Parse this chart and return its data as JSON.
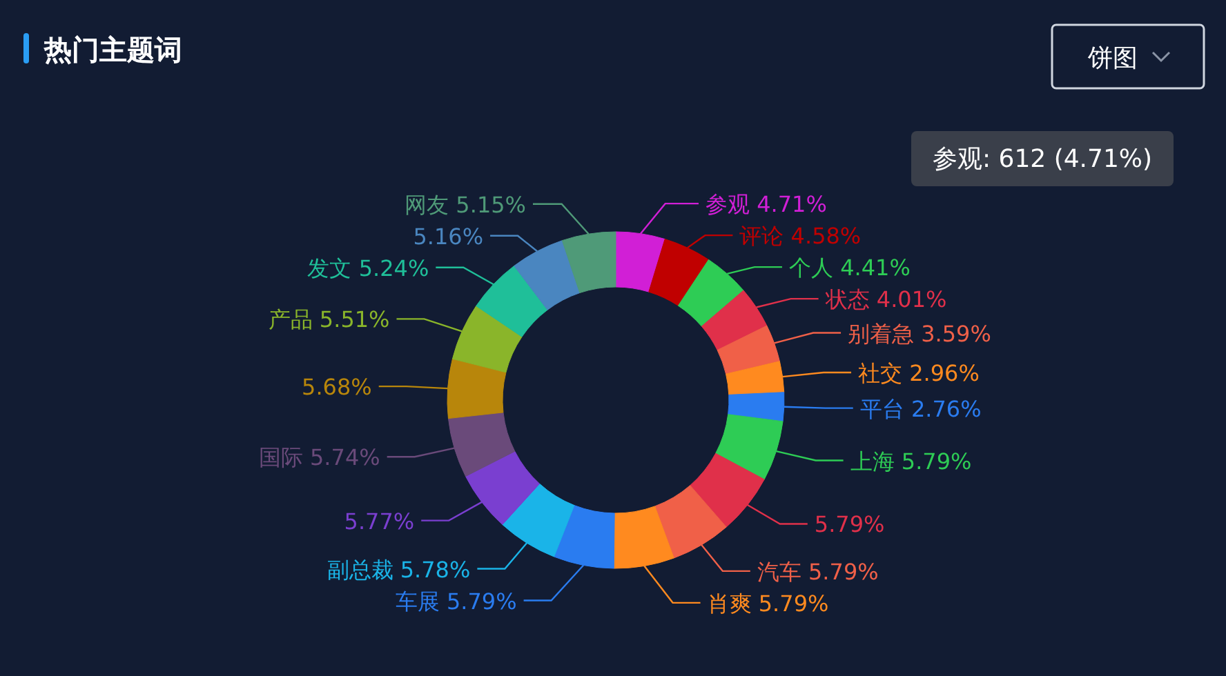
{
  "chart_data": {
    "type": "donut",
    "title": "热门主题词",
    "categories": [
      "参观",
      "评论",
      "个人",
      "状态",
      "别着急",
      "社交",
      "平台",
      "上海",
      null,
      "汽车",
      "肖爽",
      "车展",
      "副总裁",
      null,
      "国际",
      null,
      "产品",
      "发文",
      null,
      "网友"
    ],
    "values": [
      4.71,
      4.58,
      4.41,
      4.01,
      3.59,
      2.96,
      2.76,
      5.79,
      5.79,
      5.79,
      5.79,
      5.79,
      5.78,
      5.77,
      5.74,
      5.68,
      5.51,
      5.24,
      5.16,
      5.15
    ],
    "colors": [
      "#d11fd6",
      "#c00000",
      "#2ecc55",
      "#e0304a",
      "#f06048",
      "#ff8a1f",
      "#2a7cf0",
      "#2ecc55",
      "#e0304a",
      "#f06048",
      "#ff8a1f",
      "#2a7cf0",
      "#1ab4e8",
      "#7a3fd0",
      "#6a4a7a",
      "#b8860b",
      "#8ab52a",
      "#1fbf99",
      "#4a86c0",
      "#4f9a78"
    ],
    "value_labels": [
      "4.71%",
      "4.58%",
      "4.41%",
      "4.01%",
      "3.59%",
      "2.96%",
      "2.76%",
      "5.79%",
      "5.79%",
      "5.79%",
      "5.79%",
      "5.79%",
      "5.78%",
      "5.77%",
      "5.74%",
      "5.68%",
      "5.51%",
      "5.24%",
      "5.16%",
      "5.15%"
    ],
    "annotations": [
      "参观: 612 (4.71%)",
      "饼图"
    ]
  }
}
